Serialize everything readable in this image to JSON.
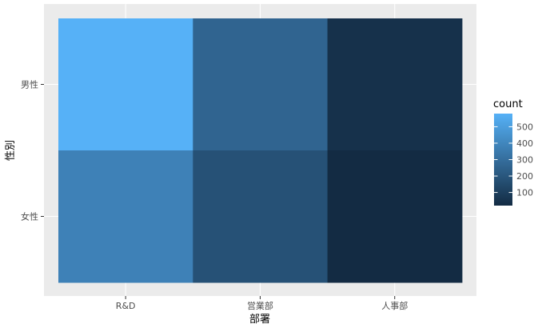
{
  "chart_data": {
    "type": "heatmap",
    "title": "",
    "xlabel": "部署",
    "ylabel": "性別",
    "x_categories": [
      "R&D",
      "営業部",
      "人事部"
    ],
    "y_categories": [
      "男性",
      "女性"
    ],
    "cells": [
      {
        "x": "R&D",
        "y": "男性",
        "value": 580
      },
      {
        "x": "営業部",
        "y": "男性",
        "value": 260
      },
      {
        "x": "人事部",
        "y": "男性",
        "value": 45
      },
      {
        "x": "R&D",
        "y": "女性",
        "value": 380
      },
      {
        "x": "営業部",
        "y": "女性",
        "value": 180
      },
      {
        "x": "人事部",
        "y": "女性",
        "value": 20
      }
    ],
    "legend": {
      "title": "count",
      "position": "right",
      "ticks": [
        100,
        200,
        300,
        400,
        500
      ],
      "tick_labels": [
        "100",
        "200",
        "300",
        "400",
        "500"
      ],
      "range": [
        20,
        580
      ]
    },
    "colors": {
      "low": "#132B43",
      "high": "#56B1F7",
      "panel_background": "#EBEBEB",
      "grid": "#FFFFFF"
    },
    "grid": true
  }
}
